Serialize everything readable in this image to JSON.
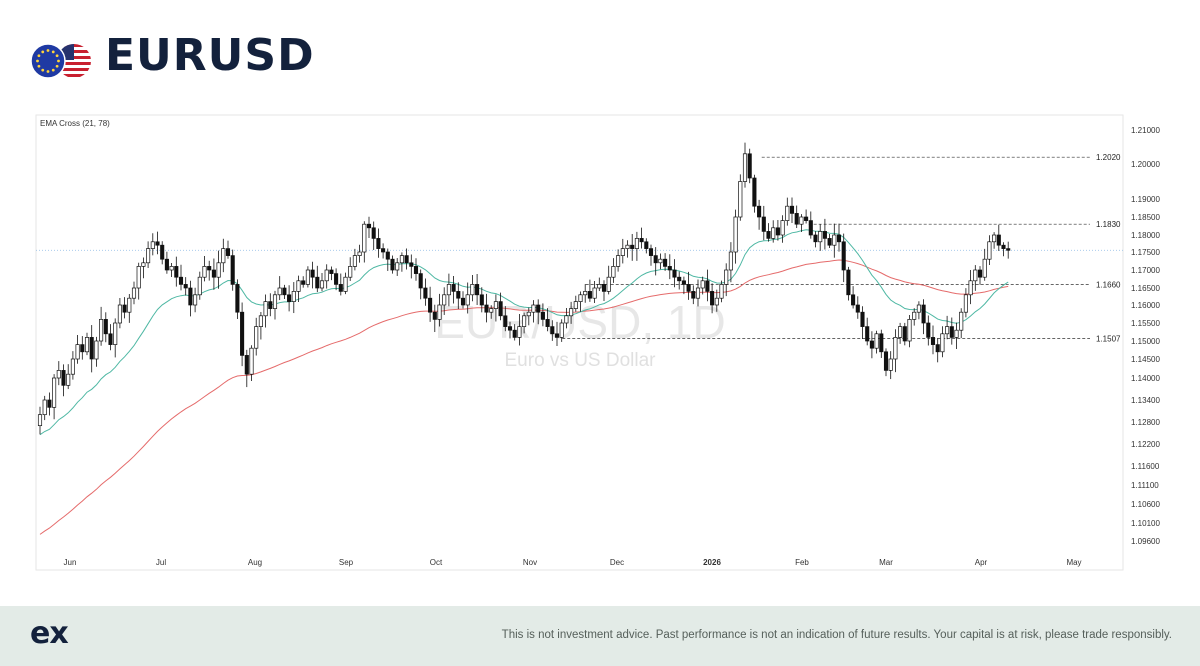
{
  "header": {
    "symbol": "EURUSD",
    "flag_icons": [
      "eu-flag-icon",
      "us-flag-icon"
    ]
  },
  "footer": {
    "logo": "ex",
    "disclaimer": "This is not investment advice. Past performance is not an indication of future results. Your capital is at risk, please trade responsibly."
  },
  "colors": {
    "candle_up": "#ffffff",
    "candle_down": "#111111",
    "ema_fast": "#4fb8a4",
    "ema_slow": "#e56b6b",
    "current_price_line": "#9dc4e8",
    "level_line": "#333333",
    "footer_bg": "#e3ebe7",
    "title": "#13213c"
  },
  "chart_data": {
    "type": "candlestick",
    "indicator_label": "EMA Cross (21, 78)",
    "watermark_symbol": "EUR/USD, 1D",
    "watermark_name": "Euro vs US Dollar",
    "x_tick_labels": [
      "Jun",
      "Jul",
      "Aug",
      "Sep",
      "Oct",
      "Nov",
      "Dec",
      "2026",
      "Feb",
      "Mar",
      "Apr",
      "May"
    ],
    "y_tick_labels": [
      "1.21000",
      "1.20000",
      "1.19000",
      "1.18500",
      "1.18000",
      "1.17500",
      "1.17000",
      "1.16500",
      "1.16000",
      "1.15500",
      "1.15000",
      "1.14500",
      "1.14000",
      "1.13400",
      "1.12800",
      "1.12200",
      "1.11600",
      "1.11100",
      "1.10600",
      "1.10100",
      "1.09600"
    ],
    "y_tick_values": [
      1.21,
      1.2,
      1.19,
      1.185,
      1.18,
      1.175,
      1.17,
      1.165,
      1.16,
      1.155,
      1.15,
      1.145,
      1.14,
      1.134,
      1.128,
      1.122,
      1.116,
      1.111,
      1.106,
      1.101,
      1.096
    ],
    "y_scale_note": "nonlinear price axis",
    "ylim": [
      1.096,
      1.21
    ],
    "date_range": [
      "2025-05-26",
      "2026-04-21"
    ],
    "current_price": 1.1755,
    "levels": [
      {
        "label": "1.2020",
        "value": 1.202,
        "from": "2026-01-27"
      },
      {
        "label": "1.1830",
        "value": 1.183,
        "from": "2026-02-12"
      },
      {
        "label": "1.1660",
        "value": 1.166,
        "from": "2025-11-28"
      },
      {
        "label": "1.1507",
        "value": 1.1507,
        "from": "2025-11-20"
      }
    ],
    "closes": [
      1.13,
      1.134,
      1.132,
      1.14,
      1.142,
      1.138,
      1.141,
      1.145,
      1.149,
      1.147,
      1.151,
      1.145,
      1.15,
      1.156,
      1.152,
      1.149,
      1.155,
      1.16,
      1.158,
      1.162,
      1.165,
      1.171,
      1.172,
      1.176,
      1.178,
      1.177,
      1.173,
      1.17,
      1.171,
      1.168,
      1.166,
      1.165,
      1.16,
      1.163,
      1.168,
      1.171,
      1.17,
      1.168,
      1.172,
      1.176,
      1.174,
      1.166,
      1.158,
      1.146,
      1.141,
      1.148,
      1.154,
      1.157,
      1.161,
      1.159,
      1.163,
      1.165,
      1.163,
      1.161,
      1.164,
      1.167,
      1.166,
      1.17,
      1.168,
      1.165,
      1.167,
      1.17,
      1.169,
      1.166,
      1.164,
      1.168,
      1.171,
      1.174,
      1.175,
      1.183,
      1.182,
      1.179,
      1.176,
      1.175,
      1.173,
      1.17,
      1.172,
      1.174,
      1.172,
      1.171,
      1.169,
      1.165,
      1.162,
      1.158,
      1.156,
      1.16,
      1.163,
      1.166,
      1.164,
      1.162,
      1.16,
      1.163,
      1.166,
      1.163,
      1.16,
      1.158,
      1.159,
      1.161,
      1.157,
      1.154,
      1.153,
      1.151,
      1.154,
      1.157,
      1.158,
      1.16,
      1.158,
      1.156,
      1.154,
      1.152,
      1.151,
      1.155,
      1.157,
      1.159,
      1.161,
      1.163,
      1.164,
      1.162,
      1.165,
      1.166,
      1.164,
      1.168,
      1.171,
      1.174,
      1.176,
      1.177,
      1.176,
      1.179,
      1.178,
      1.176,
      1.174,
      1.172,
      1.173,
      1.171,
      1.17,
      1.168,
      1.167,
      1.166,
      1.164,
      1.162,
      1.165,
      1.167,
      1.164,
      1.16,
      1.162,
      1.166,
      1.17,
      1.175,
      1.185,
      1.195,
      1.203,
      1.196,
      1.188,
      1.185,
      1.181,
      1.179,
      1.182,
      1.18,
      1.184,
      1.188,
      1.186,
      1.183,
      1.185,
      1.184,
      1.18,
      1.178,
      1.181,
      1.179,
      1.177,
      1.18,
      1.178,
      1.17,
      1.163,
      1.16,
      1.158,
      1.154,
      1.15,
      1.148,
      1.152,
      1.147,
      1.142,
      1.145,
      1.151,
      1.154,
      1.15,
      1.156,
      1.158,
      1.16,
      1.155,
      1.151,
      1.149,
      1.147,
      1.152,
      1.154,
      1.151,
      1.153,
      1.158,
      1.163,
      1.167,
      1.17,
      1.168,
      1.173,
      1.178,
      1.18,
      1.177,
      1.176,
      1.1755
    ],
    "ema_fast_name": "EMA 21",
    "ema_slow_name": "EMA 78"
  }
}
